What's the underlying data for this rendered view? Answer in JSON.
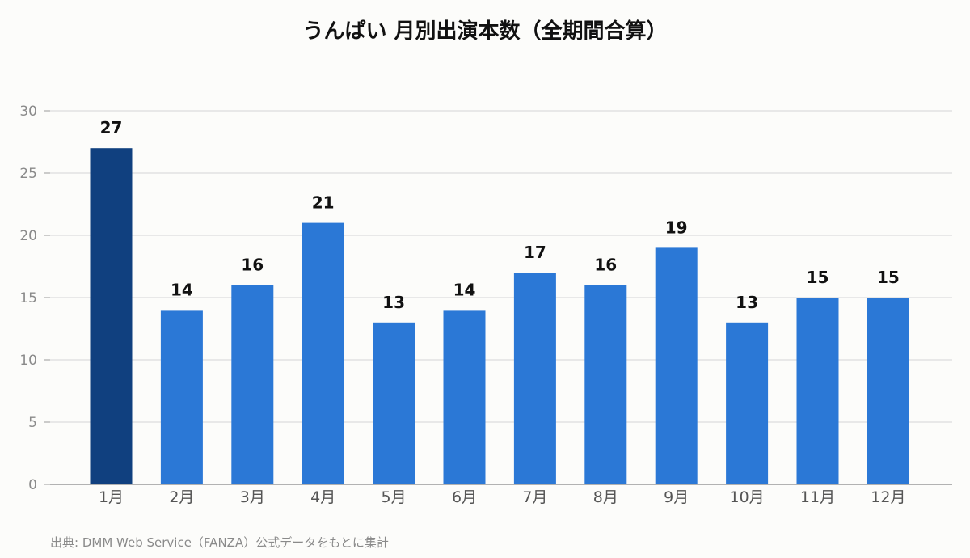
{
  "chart_data": {
    "type": "bar",
    "title": "うんぱい 月別出演本数（全期間合算）",
    "categories": [
      "1月",
      "2月",
      "3月",
      "4月",
      "5月",
      "6月",
      "7月",
      "8月",
      "9月",
      "10月",
      "11月",
      "12月"
    ],
    "values": [
      27,
      14,
      16,
      21,
      13,
      14,
      17,
      16,
      19,
      13,
      15,
      15
    ],
    "ylim": [
      0,
      30
    ],
    "yticks": [
      0,
      5,
      10,
      15,
      20,
      25,
      30
    ],
    "highlight_index": 0,
    "grid": true,
    "legend": "none",
    "colors": {
      "bar": "#2b78d6",
      "highlight": "#10407f",
      "grid": "#e2e2e2",
      "axis": "#9a9a9a"
    }
  },
  "source": "出典: DMM Web Service（FANZA）公式データをもとに集計"
}
